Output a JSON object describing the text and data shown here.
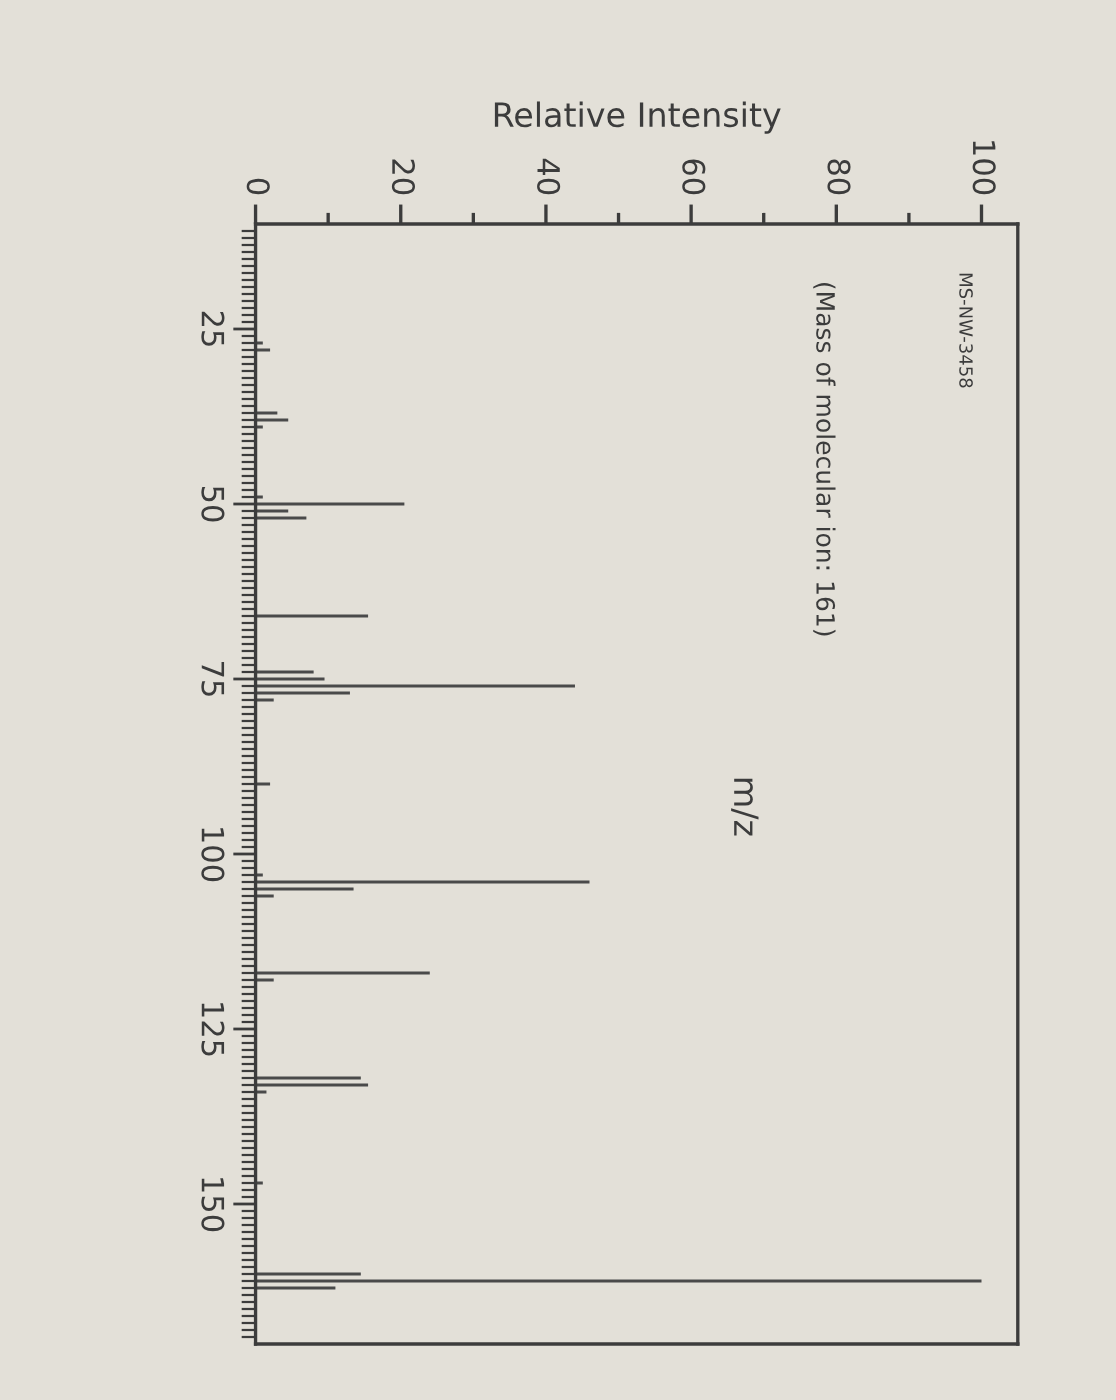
{
  "chart_data": {
    "type": "bar",
    "orientation": "horizontal",
    "xlabel": "Relative Intensity",
    "ylabel": "m/z",
    "annotations": [
      "MS-NW-3458",
      "(Mass of molecular ion: 161)"
    ],
    "x": [
      27,
      28,
      37,
      38,
      39,
      49,
      50,
      51,
      52,
      66,
      74,
      75,
      76,
      77,
      78,
      90,
      103,
      104,
      105,
      106,
      117,
      118,
      132,
      133,
      134,
      147,
      160,
      161,
      162
    ],
    "values": [
      1,
      2,
      3,
      4.5,
      1,
      1,
      20.5,
      4.5,
      7,
      15.5,
      8,
      9.5,
      44,
      13,
      2.5,
      2,
      1,
      46,
      13.5,
      2.5,
      24,
      2.5,
      14.5,
      15.5,
      1.5,
      1,
      14.5,
      100,
      11
    ],
    "color": "#4a4a4a",
    "xlim": [
      0,
      105
    ],
    "xticks": [
      0,
      {
        "value": 10,
        "label": null
      },
      20,
      {
        "value": 30,
        "label": null
      },
      40,
      {
        "value": 50,
        "label": null
      },
      60,
      {
        "value": 70,
        "label": null
      },
      80,
      {
        "value": 90,
        "label": null
      },
      100
    ],
    "ylim": [
      170,
      10
    ],
    "yticks": [
      {
        "value": 11,
        "label": null
      },
      {
        "value": 12,
        "label": null
      },
      {
        "value": 13,
        "label": null
      },
      {
        "value": 14,
        "label": null
      },
      {
        "value": 15,
        "label": null
      },
      {
        "value": 16,
        "label": null
      },
      {
        "value": 17,
        "label": null
      },
      {
        "value": 18,
        "label": null
      },
      {
        "value": 19,
        "label": null
      },
      {
        "value": 20,
        "label": null
      },
      {
        "value": 21,
        "label": null
      },
      {
        "value": 22,
        "label": null
      },
      {
        "value": 23,
        "label": null
      },
      {
        "value": 24,
        "label": null
      },
      25,
      {
        "value": 26,
        "label": null
      },
      {
        "value": 27,
        "label": null
      },
      {
        "value": 28,
        "label": null
      },
      {
        "value": 29,
        "label": null
      },
      {
        "value": 30,
        "label": null
      },
      {
        "value": 31,
        "label": null
      },
      {
        "value": 32,
        "label": null
      },
      {
        "value": 33,
        "label": null
      },
      {
        "value": 34,
        "label": null
      },
      {
        "value": 35,
        "label": null
      },
      {
        "value": 36,
        "label": null
      },
      {
        "value": 37,
        "label": null
      },
      {
        "value": 38,
        "label": null
      },
      {
        "value": 39,
        "label": null
      },
      {
        "value": 40,
        "label": null
      },
      {
        "value": 41,
        "label": null
      },
      {
        "value": 42,
        "label": null
      },
      {
        "value": 43,
        "label": null
      },
      {
        "value": 44,
        "label": null
      },
      {
        "value": 45,
        "label": null
      },
      {
        "value": 46,
        "label": null
      },
      {
        "value": 47,
        "label": null
      },
      {
        "value": 48,
        "label": null
      },
      {
        "value": 49,
        "label": null
      },
      50,
      {
        "value": 51,
        "label": null
      },
      {
        "value": 52,
        "label": null
      },
      {
        "value": 53,
        "label": null
      },
      {
        "value": 54,
        "label": null
      },
      {
        "value": 55,
        "label": null
      },
      {
        "value": 56,
        "label": null
      },
      {
        "value": 57,
        "label": null
      },
      {
        "value": 58,
        "label": null
      },
      {
        "value": 59,
        "label": null
      },
      {
        "value": 60,
        "label": null
      },
      {
        "value": 61,
        "label": null
      },
      {
        "value": 62,
        "label": null
      },
      {
        "value": 63,
        "label": null
      },
      {
        "value": 64,
        "label": null
      },
      {
        "value": 65,
        "label": null
      },
      {
        "value": 66,
        "label": null
      },
      {
        "value": 67,
        "label": null
      },
      {
        "value": 68,
        "label": null
      },
      {
        "value": 69,
        "label": null
      },
      {
        "value": 70,
        "label": null
      },
      {
        "value": 71,
        "label": null
      },
      {
        "value": 72,
        "label": null
      },
      {
        "value": 73,
        "label": null
      },
      {
        "value": 74,
        "label": null
      },
      75,
      {
        "value": 76,
        "label": null
      },
      {
        "value": 77,
        "label": null
      },
      {
        "value": 78,
        "label": null
      },
      {
        "value": 79,
        "label": null
      },
      {
        "value": 80,
        "label": null
      },
      {
        "value": 81,
        "label": null
      },
      {
        "value": 82,
        "label": null
      },
      {
        "value": 83,
        "label": null
      },
      {
        "value": 84,
        "label": null
      },
      {
        "value": 85,
        "label": null
      },
      {
        "value": 86,
        "label": null
      },
      {
        "value": 87,
        "label": null
      },
      {
        "value": 88,
        "label": null
      },
      {
        "value": 89,
        "label": null
      },
      {
        "value": 90,
        "label": null
      },
      {
        "value": 91,
        "label": null
      },
      {
        "value": 92,
        "label": null
      },
      {
        "value": 93,
        "label": null
      },
      {
        "value": 94,
        "label": null
      },
      {
        "value": 95,
        "label": null
      },
      {
        "value": 96,
        "label": null
      },
      {
        "value": 97,
        "label": null
      },
      {
        "value": 98,
        "label": null
      },
      {
        "value": 99,
        "label": null
      },
      100,
      {
        "value": 101,
        "label": null
      },
      {
        "value": 102,
        "label": null
      },
      {
        "value": 103,
        "label": null
      },
      {
        "value": 104,
        "label": null
      },
      {
        "value": 105,
        "label": null
      },
      {
        "value": 106,
        "label": null
      },
      {
        "value": 107,
        "label": null
      },
      {
        "value": 108,
        "label": null
      },
      {
        "value": 109,
        "label": null
      },
      {
        "value": 110,
        "label": null
      },
      {
        "value": 111,
        "label": null
      },
      {
        "value": 112,
        "label": null
      },
      {
        "value": 113,
        "label": null
      },
      {
        "value": 114,
        "label": null
      },
      {
        "value": 115,
        "label": null
      },
      {
        "value": 116,
        "label": null
      },
      {
        "value": 117,
        "label": null
      },
      {
        "value": 118,
        "label": null
      },
      {
        "value": 119,
        "label": null
      },
      {
        "value": 120,
        "label": null
      },
      {
        "value": 121,
        "label": null
      },
      {
        "value": 122,
        "label": null
      },
      {
        "value": 123,
        "label": null
      },
      {
        "value": 124,
        "label": null
      },
      125,
      {
        "value": 126,
        "label": null
      },
      {
        "value": 127,
        "label": null
      },
      {
        "value": 128,
        "label": null
      },
      {
        "value": 129,
        "label": null
      },
      {
        "value": 130,
        "label": null
      },
      {
        "value": 131,
        "label": null
      },
      {
        "value": 132,
        "label": null
      },
      {
        "value": 133,
        "label": null
      },
      {
        "value": 134,
        "label": null
      },
      {
        "value": 135,
        "label": null
      },
      {
        "value": 136,
        "label": null
      },
      {
        "value": 137,
        "label": null
      },
      {
        "value": 138,
        "label": null
      },
      {
        "value": 139,
        "label": null
      },
      {
        "value": 140,
        "label": null
      },
      {
        "value": 141,
        "label": null
      },
      {
        "value": 142,
        "label": null
      },
      {
        "value": 143,
        "label": null
      },
      {
        "value": 144,
        "label": null
      },
      {
        "value": 145,
        "label": null
      },
      {
        "value": 146,
        "label": null
      },
      {
        "value": 147,
        "label": null
      },
      {
        "value": 148,
        "label": null
      },
      {
        "value": 149,
        "label": null
      },
      150,
      {
        "value": 151,
        "label": null
      },
      {
        "value": 152,
        "label": null
      },
      {
        "value": 153,
        "label": null
      },
      {
        "value": 154,
        "label": null
      },
      {
        "value": 155,
        "label": null
      },
      {
        "value": 156,
        "label": null
      },
      {
        "value": 157,
        "label": null
      },
      {
        "value": 158,
        "label": null
      },
      {
        "value": 159,
        "label": null
      },
      {
        "value": 160,
        "label": null
      },
      {
        "value": 161,
        "label": null
      },
      {
        "value": 162,
        "label": null
      },
      {
        "value": 163,
        "label": null
      },
      {
        "value": 164,
        "label": null
      },
      {
        "value": 165,
        "label": null
      },
      {
        "value": 166,
        "label": null
      },
      {
        "value": 167,
        "label": null
      },
      {
        "value": 168,
        "label": null
      },
      {
        "value": 169,
        "label": null
      }
    ]
  }
}
